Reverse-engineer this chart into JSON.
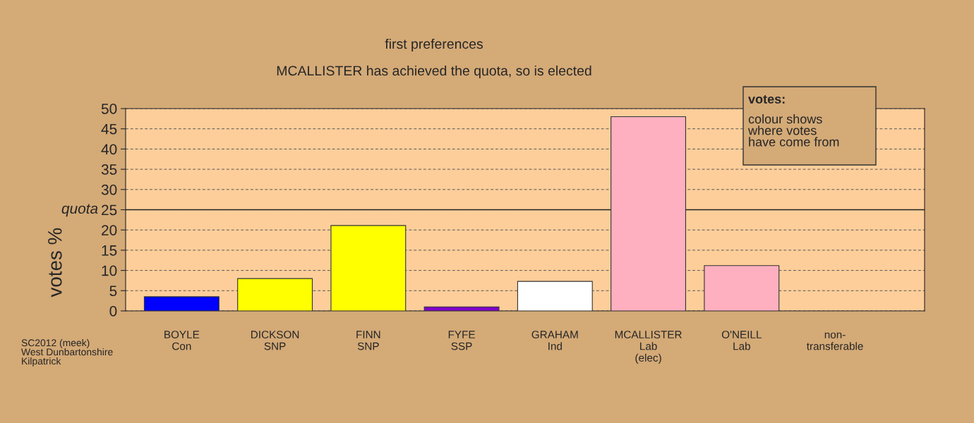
{
  "chart_data": {
    "type": "bar",
    "title": "first preferences",
    "subtitle": "MCALLISTER has achieved the quota, so is elected",
    "ylabel": "votes %",
    "categories": [
      "BOYLE\nCon",
      "DICKSON\nSNP",
      "FINN\nSNP",
      "FYFE\nSSP",
      "GRAHAM\nInd",
      "MCALLISTER\nLab\n(elec)",
      "O'NEILL\nLab",
      "non-\ntransferable"
    ],
    "values": [
      3.5,
      8.0,
      21.1,
      1.0,
      7.3,
      48.0,
      11.2,
      null
    ],
    "colors": [
      "#0000ff",
      "#ffff00",
      "#ffff00",
      "#7f00c8",
      "#ffffff",
      "#ffb0c0",
      "#ffb0c0",
      null
    ],
    "ylim": [
      0,
      50
    ],
    "yticks": [
      0,
      5,
      10,
      15,
      20,
      25,
      30,
      35,
      40,
      45,
      50
    ],
    "grid": "y",
    "ref_lines": [
      {
        "axis": "y",
        "value": 25,
        "label": "quota"
      }
    ],
    "annotations": [
      "votes:",
      "colour shows\nwhere votes\nhave come from",
      "SC2012 (meek)\nWest Dunbartonshire\nKilpatrick"
    ]
  }
}
